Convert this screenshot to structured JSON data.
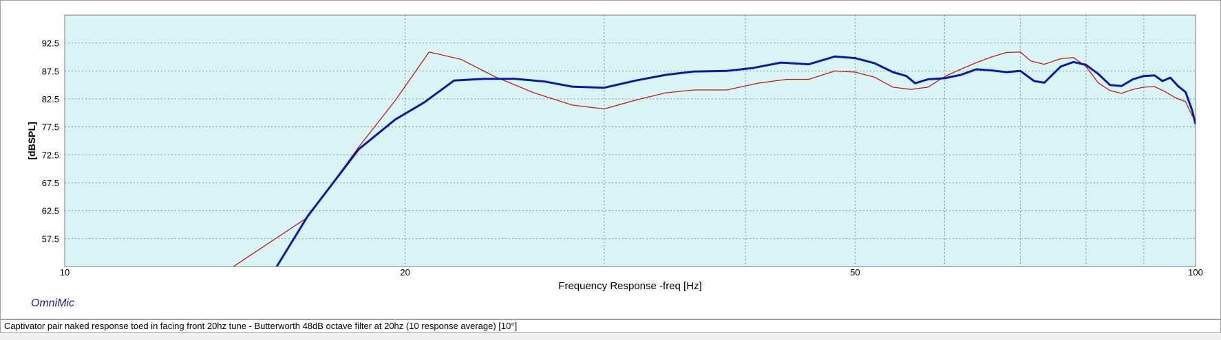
{
  "app": {
    "brand": "OmniMic"
  },
  "caption": "Captivator pair naked response toed in facing front 20hz tune - Butterworth 48dB octave filter at 20hz (10 response average) [10°]",
  "colors": {
    "plot_background": "#d8f4f4",
    "grid": "#8a8a8a",
    "series_blue": "#0a1aa8",
    "series_red": "#c01818"
  },
  "chart_data": {
    "type": "line",
    "title": "",
    "xlabel": "Frequency Response -freq [Hz]",
    "ylabel": "[dBSPL]",
    "x_scale": "log",
    "xlim": [
      10,
      100
    ],
    "ylim": [
      52.5,
      97.5
    ],
    "xticks": [
      10,
      20,
      50,
      100
    ],
    "x_minor_ticks": [
      30,
      40,
      60,
      70,
      80,
      90
    ],
    "yticks": [
      57.5,
      62.5,
      67.5,
      72.5,
      77.5,
      82.5,
      87.5,
      92.5
    ],
    "grid": true,
    "series": [
      {
        "color": "blue",
        "x": [
          15.4,
          16.4,
          18.2,
          19.6,
          20.8,
          22.1,
          23.5,
          25,
          26.6,
          28.1,
          30,
          32,
          34,
          36,
          38.5,
          40.5,
          43,
          45.5,
          48,
          50,
          52,
          54,
          55.5,
          56.5,
          58,
          60,
          62,
          64,
          66,
          68,
          70,
          72,
          73.5,
          76,
          78,
          80,
          82,
          84,
          86,
          88,
          90,
          92,
          93.5,
          95,
          96.5,
          98,
          99.3,
          100
        ],
        "y": [
          52.5,
          61.5,
          73.5,
          78.8,
          81.9,
          85.8,
          86.1,
          86.1,
          85.6,
          84.7,
          84.5,
          85.8,
          86.8,
          87.4,
          87.5,
          88.0,
          89.0,
          88.7,
          90.1,
          89.8,
          88.9,
          87.3,
          86.6,
          85.3,
          86.0,
          86.2,
          86.8,
          87.8,
          87.6,
          87.3,
          87.5,
          85.7,
          85.4,
          88.3,
          89.1,
          88.6,
          87.0,
          85.0,
          84.8,
          86.0,
          86.6,
          86.7,
          85.7,
          86.3,
          84.8,
          83.7,
          80.5,
          78.0
        ]
      },
      {
        "color": "red",
        "x": [
          14.1,
          16.4,
          18.2,
          19.6,
          21,
          22.4,
          24,
          26,
          28.1,
          30,
          32,
          34,
          36,
          38.5,
          41,
          43.5,
          45.5,
          48,
          50,
          52,
          54,
          56,
          58,
          60,
          62,
          64,
          66,
          68,
          70,
          71.5,
          73.5,
          76,
          78,
          80,
          82,
          84,
          86,
          88,
          90,
          92,
          94,
          96,
          98,
          99.3,
          100
        ],
        "y": [
          52.5,
          61.3,
          73.9,
          82.2,
          90.9,
          89.6,
          86.5,
          83.6,
          81.4,
          80.7,
          82.3,
          83.6,
          84.1,
          84.1,
          85.3,
          86.0,
          86.0,
          87.5,
          87.3,
          86.4,
          84.6,
          84.2,
          84.6,
          86.5,
          87.8,
          89.0,
          90.0,
          90.8,
          90.9,
          89.3,
          88.7,
          89.7,
          89.9,
          88.3,
          85.4,
          84.0,
          83.5,
          84.2,
          84.6,
          84.7,
          83.8,
          82.7,
          82.0,
          79.5,
          78.7
        ]
      }
    ]
  }
}
